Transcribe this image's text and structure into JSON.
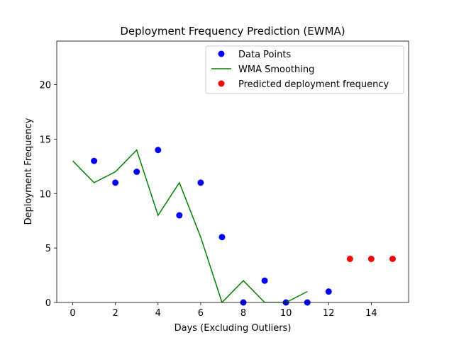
{
  "chart_data": {
    "type": "scatter",
    "title": "Deployment Frequency Prediction (EWMA)",
    "xlabel": "Days (Excluding Outliers)",
    "ylabel": "Deployment Frequency",
    "xlim": [
      -0.75,
      15.75
    ],
    "ylim": [
      0,
      24
    ],
    "xticks": [
      0,
      2,
      4,
      6,
      8,
      10,
      12,
      14
    ],
    "yticks": [
      0,
      5,
      10,
      15,
      20
    ],
    "grid": false,
    "legend_position": "top-right",
    "series": [
      {
        "name": "Data Points",
        "kind": "scatter",
        "color": "#0000ff",
        "x": [
          1,
          2,
          3,
          4,
          5,
          6,
          7,
          8,
          9,
          10,
          11,
          12
        ],
        "y": [
          13,
          11,
          12,
          14,
          8,
          11,
          6,
          0,
          2,
          0,
          0,
          1
        ]
      },
      {
        "name": "WMA Smoothing",
        "kind": "line",
        "color": "#008000",
        "x": [
          0,
          1,
          2,
          3,
          4,
          5,
          6,
          7,
          8,
          9,
          10,
          11
        ],
        "y": [
          13,
          11,
          12,
          14,
          8,
          11,
          6,
          0,
          2,
          0,
          0,
          1
        ]
      },
      {
        "name": "Predicted deployment frequency",
        "kind": "scatter",
        "color": "#ff0000",
        "x": [
          13,
          14,
          15
        ],
        "y": [
          4,
          4,
          4
        ]
      }
    ]
  }
}
